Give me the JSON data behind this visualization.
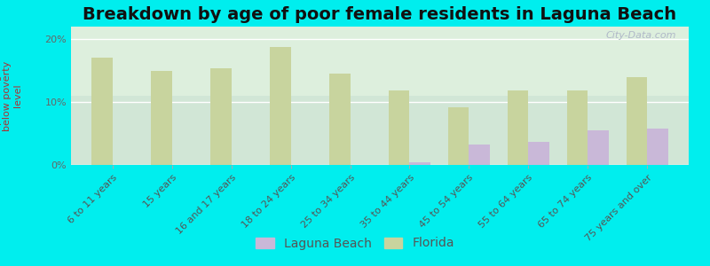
{
  "title": "Breakdown by age of poor female residents in Laguna Beach",
  "ylabel": "percentage\nbelow poverty\nlevel",
  "categories": [
    "6 to 11 years",
    "15 years",
    "16 and 17 years",
    "18 to 24 years",
    "25 to 34 years",
    "35 to 44 years",
    "45 to 54 years",
    "55 to 64 years",
    "65 to 74 years",
    "75 years and over"
  ],
  "laguna_beach": [
    0.0,
    0.0,
    0.0,
    0.0,
    0.0,
    0.4,
    3.2,
    3.7,
    5.5,
    5.8
  ],
  "florida": [
    17.0,
    15.0,
    15.4,
    18.8,
    14.5,
    11.8,
    9.2,
    11.8,
    11.8,
    14.0
  ],
  "laguna_color": "#c9b8d8",
  "florida_color": "#c8d49e",
  "background_color": "#00eeee",
  "plot_bg_top": "#f0f7f0",
  "plot_bg_bottom": "#d8f0d8",
  "ylim": [
    0,
    22
  ],
  "yticks": [
    0,
    10,
    20
  ],
  "ytick_labels": [
    "0%",
    "10%",
    "20%"
  ],
  "bar_width": 0.35,
  "title_fontsize": 14,
  "axis_label_fontsize": 8,
  "tick_fontsize": 8,
  "legend_fontsize": 10,
  "watermark": "City-Data.com"
}
